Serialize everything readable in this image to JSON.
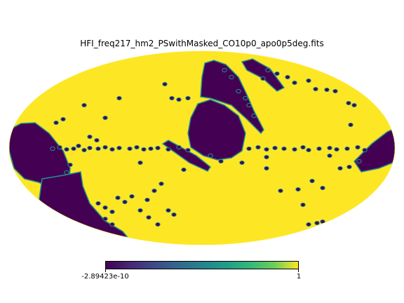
{
  "chart_data": {
    "type": "heatmap",
    "projection": "mollweide",
    "title": "HFI_freq217_hm2_PSwithMasked_CO10p0_apo0p5deg.fits",
    "colormap": "viridis",
    "colorbar": {
      "orientation": "horizontal",
      "min_label": "-2.89423e-10",
      "max_label": "1",
      "vmin": -2.89423e-10,
      "vmax": 1
    },
    "colors": {
      "high": "#fde725",
      "low": "#440154",
      "edge": "#21918c"
    },
    "description_values": {
      "background_value": 1,
      "mask_value": 0
    }
  }
}
